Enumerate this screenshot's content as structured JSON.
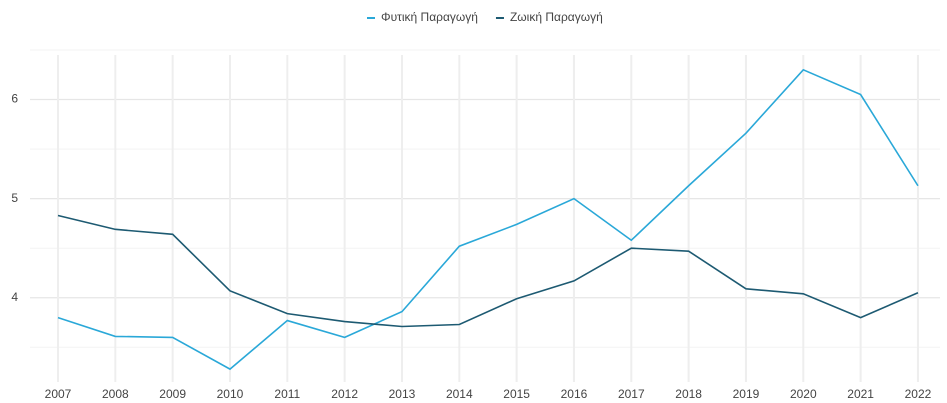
{
  "chart_data": {
    "type": "line",
    "categories": [
      "2007",
      "2008",
      "2009",
      "2010",
      "2011",
      "2012",
      "2013",
      "2014",
      "2015",
      "2016",
      "2017",
      "2018",
      "2019",
      "2020",
      "2021",
      "2022"
    ],
    "series": [
      {
        "name": "Φυτική Παραγωγή",
        "color": "#2aa8d8",
        "values": [
          3.8,
          3.61,
          3.6,
          3.28,
          3.77,
          3.6,
          3.86,
          4.52,
          4.74,
          5.0,
          4.58,
          5.13,
          5.66,
          6.3,
          6.05,
          5.13
        ]
      },
      {
        "name": "Ζωική Παραγωγή",
        "color": "#1d5a72",
        "values": [
          4.83,
          4.69,
          4.64,
          4.07,
          3.84,
          3.76,
          3.71,
          3.73,
          3.99,
          4.17,
          4.5,
          4.47,
          4.09,
          4.04,
          3.8,
          4.05
        ]
      }
    ],
    "ylim": [
      3.15,
      6.55
    ],
    "yticks": [
      4,
      5,
      6
    ],
    "minor_yticks": [
      3.5,
      4.5,
      5.5,
      6.5
    ],
    "grid": true,
    "legend": "top"
  }
}
